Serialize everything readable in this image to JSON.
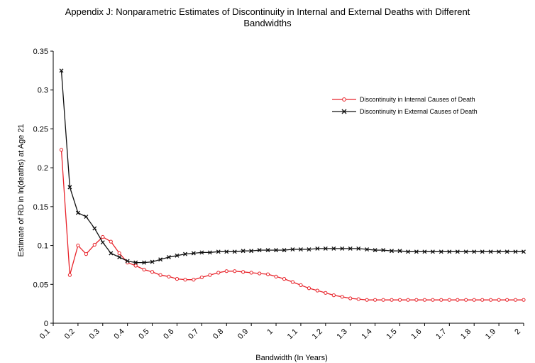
{
  "chart_data": {
    "type": "line",
    "title_line1": "Appendix J: Nonparametric Estimates of Discontinuity in Internal and External Deaths with Different",
    "title_line2": "Bandwidths",
    "xlabel": "Bandwidth (In Years)",
    "ylabel": "Estimate of RD in ln(deaths) at Age 21",
    "xlim": [
      0.1,
      2.0
    ],
    "ylim": [
      0,
      0.35
    ],
    "x_ticks": [
      "0.1",
      "0.2",
      "0.3",
      "0.4",
      "0.5",
      "0.6",
      "0.7",
      "0.8",
      "0.9",
      "1",
      "1.1",
      "1.2",
      "1.3",
      "1.4",
      "1.5",
      "1.6",
      "1.7",
      "1.8",
      "1.9",
      "2"
    ],
    "y_ticks": [
      "0",
      "0.05",
      "0.1",
      "0.15",
      "0.2",
      "0.25",
      "0.3",
      "0.35"
    ],
    "grid": false,
    "legend_position": "top-right",
    "x": [
      0.133,
      0.167,
      0.2,
      0.233,
      0.267,
      0.3,
      0.333,
      0.367,
      0.4,
      0.433,
      0.467,
      0.5,
      0.533,
      0.567,
      0.6,
      0.633,
      0.667,
      0.7,
      0.733,
      0.767,
      0.8,
      0.833,
      0.867,
      0.9,
      0.933,
      0.967,
      1.0,
      1.033,
      1.067,
      1.1,
      1.133,
      1.167,
      1.2,
      1.233,
      1.267,
      1.3,
      1.333,
      1.367,
      1.4,
      1.433,
      1.467,
      1.5,
      1.533,
      1.567,
      1.6,
      1.633,
      1.667,
      1.7,
      1.733,
      1.767,
      1.8,
      1.833,
      1.867,
      1.9,
      1.933,
      1.967,
      2.0
    ],
    "series": [
      {
        "name": "Discontinuity in Internal Causes of Death",
        "color": "#e8232a",
        "marker": "circle",
        "values": [
          0.223,
          0.062,
          0.1,
          0.089,
          0.101,
          0.111,
          0.105,
          0.09,
          0.078,
          0.074,
          0.069,
          0.066,
          0.062,
          0.06,
          0.057,
          0.056,
          0.056,
          0.059,
          0.062,
          0.065,
          0.067,
          0.067,
          0.066,
          0.065,
          0.064,
          0.063,
          0.06,
          0.057,
          0.053,
          0.049,
          0.045,
          0.042,
          0.039,
          0.036,
          0.034,
          0.032,
          0.031,
          0.03,
          0.03,
          0.03,
          0.03,
          0.03,
          0.03,
          0.03,
          0.03,
          0.03,
          0.03,
          0.03,
          0.03,
          0.03,
          0.03,
          0.03,
          0.03,
          0.03,
          0.03,
          0.03,
          0.03
        ]
      },
      {
        "name": "Discontinuity in External Causes of Death",
        "color": "#111111",
        "marker": "x",
        "values": [
          0.325,
          0.175,
          0.142,
          0.137,
          0.122,
          0.104,
          0.09,
          0.085,
          0.08,
          0.078,
          0.078,
          0.079,
          0.082,
          0.085,
          0.087,
          0.089,
          0.09,
          0.091,
          0.091,
          0.092,
          0.092,
          0.092,
          0.093,
          0.093,
          0.094,
          0.094,
          0.094,
          0.094,
          0.095,
          0.095,
          0.095,
          0.096,
          0.096,
          0.096,
          0.096,
          0.096,
          0.096,
          0.095,
          0.094,
          0.094,
          0.093,
          0.093,
          0.092,
          0.092,
          0.092,
          0.092,
          0.092,
          0.092,
          0.092,
          0.092,
          0.092,
          0.092,
          0.092,
          0.092,
          0.092,
          0.092,
          0.092
        ]
      }
    ]
  }
}
